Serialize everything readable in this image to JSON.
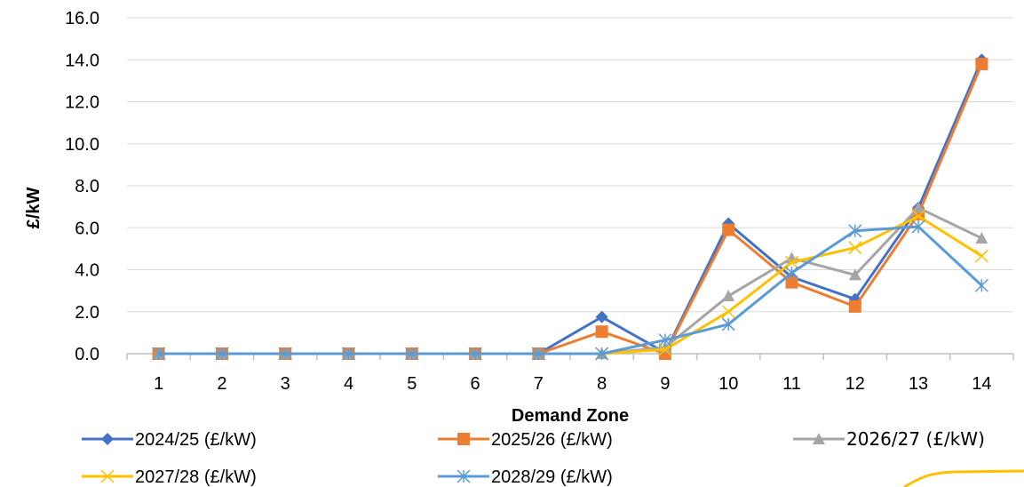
{
  "chart_data": {
    "type": "line",
    "title": "",
    "xlabel": "Demand Zone",
    "ylabel": "£/kW",
    "ylim": [
      0,
      16
    ],
    "y_ticks": [
      "0.0",
      "2.0",
      "4.0",
      "6.0",
      "8.0",
      "10.0",
      "12.0",
      "14.0",
      "16.0"
    ],
    "categories": [
      "1",
      "2",
      "3",
      "4",
      "5",
      "6",
      "7",
      "8",
      "9",
      "10",
      "11",
      "12",
      "13",
      "14"
    ],
    "grid": "horizontal",
    "legend_position": "bottom",
    "series": [
      {
        "name": "2024/25 (£/kW)",
        "color": "#4472C4",
        "marker": "diamond",
        "values": [
          0,
          0,
          0,
          0,
          0,
          0,
          0,
          1.75,
          0.05,
          6.2,
          3.65,
          2.6,
          6.95,
          14.0
        ]
      },
      {
        "name": "2025/26 (£/kW)",
        "color": "#ED7D31",
        "marker": "square",
        "values": [
          0,
          0,
          0,
          0,
          0,
          0,
          0,
          1.05,
          0.0,
          5.9,
          3.4,
          2.25,
          6.65,
          13.8
        ]
      },
      {
        "name": "2026/27 (£/kW)",
        "color": "#A5A5A5",
        "marker": "triangle",
        "values": [
          0,
          0,
          0,
          0,
          0,
          0,
          0,
          0,
          0.3,
          2.75,
          4.55,
          3.75,
          6.95,
          5.5
        ]
      },
      {
        "name": "2027/28 (£/kW)",
        "color": "#FFC000",
        "marker": "x",
        "values": [
          0,
          0,
          0,
          0,
          0,
          0,
          0,
          0,
          0.2,
          2.0,
          4.35,
          5.05,
          6.55,
          4.65
        ]
      },
      {
        "name": "2028/29 (£/kW)",
        "color": "#5B9BD5",
        "marker": "star",
        "values": [
          0,
          0,
          0,
          0,
          0,
          0,
          0,
          0,
          0.65,
          1.4,
          3.85,
          5.85,
          6.05,
          3.25
        ]
      }
    ]
  }
}
